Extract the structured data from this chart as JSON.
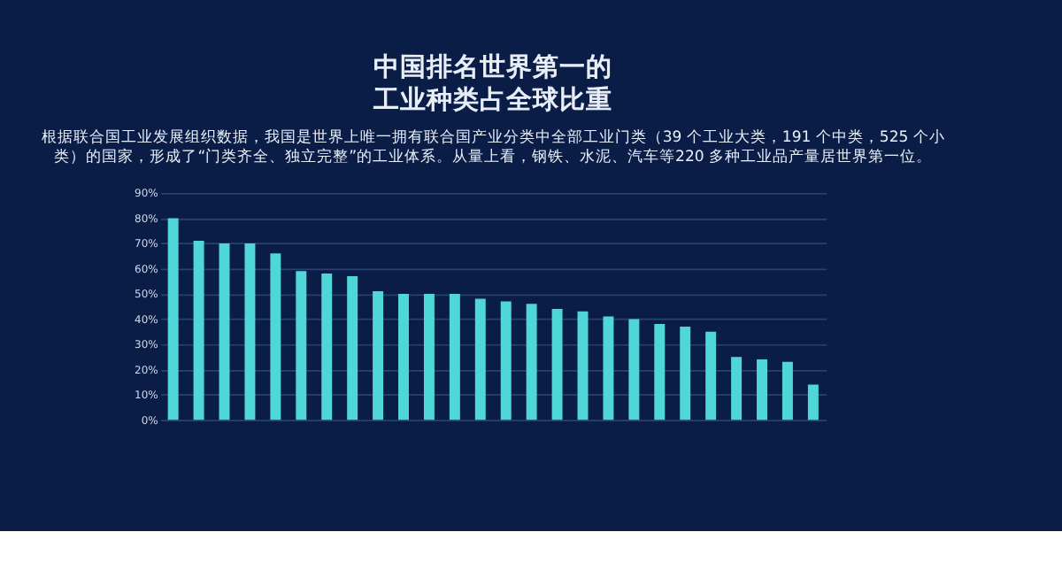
{
  "chart_data": {
    "type": "bar",
    "title": "中国排名世界第一的工业种类占全球比重",
    "subtitle": "根据联合国工业发展组织数据，我国是世界上唯一拥有联合国产业分类中全部工业门类（39 个工业大类，191 个中类，525 个小类）的国家，形成了“门类齐全、独立完整”的工业体系。从量上看，钢铁、水泥、汽车等220 多种工业品产量居世界第一位。",
    "categories": [
      null,
      null,
      null,
      null,
      null,
      null,
      null,
      null,
      null,
      null,
      null,
      null,
      null,
      null,
      null,
      null,
      null,
      null,
      null,
      null,
      null,
      null,
      null,
      null,
      null,
      null
    ],
    "values": [
      80,
      71,
      70,
      70,
      66,
      59,
      58,
      57,
      51,
      50,
      50,
      50,
      48,
      47,
      46,
      44,
      43,
      41,
      40,
      38,
      37,
      35,
      25,
      24,
      23,
      14
    ],
    "color": "#4fd6d6",
    "ylim": [
      0,
      90
    ],
    "yticks": [
      {
        "value": 0,
        "label": "0%"
      },
      {
        "value": 10,
        "label": "10%"
      },
      {
        "value": 20,
        "label": "20%"
      },
      {
        "value": 30,
        "label": "30%"
      },
      {
        "value": 40,
        "label": "40%"
      },
      {
        "value": 50,
        "label": "50%"
      },
      {
        "value": 60,
        "label": "60%"
      },
      {
        "value": 70,
        "label": "70%"
      },
      {
        "value": 80,
        "label": "80%"
      },
      {
        "value": 90,
        "label": "90%"
      }
    ],
    "grid": "y",
    "tick_labels": "y"
  }
}
